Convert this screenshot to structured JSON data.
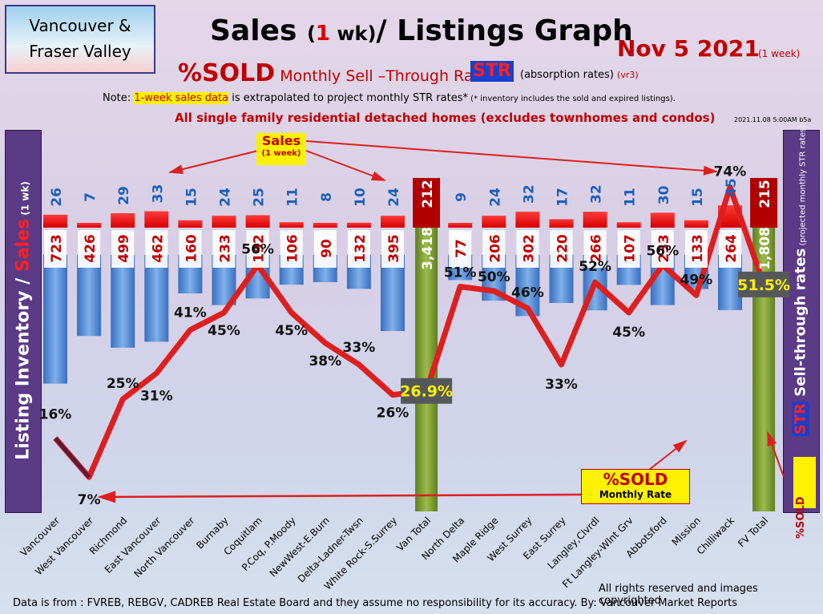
{
  "header": {
    "region_line1": "Vancouver &",
    "region_line2": "Fraser Valley",
    "title_a": "Sales ",
    "title_one": "1",
    "title_wk": " wk)",
    "title_open": "(",
    "title_b": "/ Listings Graph",
    "date": "Nov 5  2021",
    "date_sub": "(1 week)",
    "subtitle_big": "%SOLD",
    "subtitle_rest": " Monthly Sell –Through Rates",
    "str": "STR",
    "absorb": "(absorption rates)",
    "version": "(vr3)",
    "note_a": "Note: ",
    "note_hl": "1-week sales data",
    "note_b": " is extrapolated to project monthly STR rates*",
    "note_small": " (* inventory includes the sold and expired listings).",
    "detached": "All single family residential detached homes (excludes townhomes and condos)",
    "stamp": "2021.11.08 5:00AM b5a"
  },
  "side_labels": {
    "left_a": "Listing Inventory / ",
    "left_sales": "Sales",
    "left_wk": " (1 wk)",
    "right_a": "Sell-through rates",
    "right_small": " (projected monthly STR rates)",
    "right_str": "STR",
    "right_sold": "%SOLD"
  },
  "callouts": {
    "sales_l1": "Sales",
    "sales_l2": "(1 week)",
    "sold_l1": "%SOLD",
    "sold_l2": "Monthly Rate"
  },
  "footer": {
    "rights": "All rights reserved and  images copyrighted",
    "source": "Data is from : FVREB, REBGV, CADREB Real Estate Board and they assume no responsibility for its accuracy. By: Vancouver Market Reports"
  },
  "colors": {
    "sales": "#ff1a1a",
    "inventory": "#4a86d4",
    "total": "#7a9a2e",
    "total_sales": "#b00000",
    "line": "#dd1f1f",
    "value_text": "#c00000",
    "sales_text": "#1e5fb8"
  },
  "chart_data": {
    "type": "bar",
    "categories": [
      "Vancouver",
      "West Vancouver",
      "Richmond",
      "East Vancouver",
      "North Vancouver",
      "Burnaby",
      "Coquitlam",
      "P.Coq, P.Moody",
      "NewWest-E.Burn",
      "Delta-Ladner-Twsn",
      "White Rock-S.Surrey",
      "Van Total",
      "North Delta",
      "Maple Ridge",
      "West Surrey",
      "East Surrey",
      "Langley,Clvrdl",
      "Ft Langley-Wlnt Grv",
      "Abbotsford",
      "Mission",
      "Chilliwack",
      "FV Total"
    ],
    "series": [
      {
        "name": "Sales",
        "values": [
          26,
          7,
          29,
          33,
          15,
          24,
          25,
          11,
          8,
          10,
          24,
          212,
          9,
          24,
          32,
          17,
          32,
          11,
          30,
          15,
          45,
          215
        ]
      },
      {
        "name": "Listing Inventory",
        "values": [
          723,
          426,
          499,
          462,
          160,
          233,
          192,
          106,
          90,
          132,
          395,
          3418,
          77,
          206,
          302,
          220,
          266,
          107,
          233,
          133,
          264,
          1808
        ]
      },
      {
        "name": "%SOLD",
        "values": [
          16,
          7,
          25,
          31,
          41,
          45,
          56,
          45,
          38,
          33,
          26,
          26.9,
          51,
          50,
          46,
          33,
          52,
          45,
          56,
          49,
          74,
          51.5
        ]
      }
    ],
    "sold_labels": [
      "16%",
      "7%",
      "25%",
      "31%",
      "41%",
      "45%",
      "56%",
      "45%",
      "38%",
      "33%",
      "26%",
      "26.9%",
      "51%",
      "50%",
      "46%",
      "33%",
      "52%",
      "45%",
      "56%",
      "49%",
      "74%",
      "51.5%"
    ],
    "inventory_labels": [
      "723",
      "426",
      "499",
      "462",
      "160",
      "233",
      "192",
      "106",
      "90",
      "132",
      "395",
      "3,418",
      "77",
      "206",
      "302",
      "220",
      "266",
      "107",
      "233",
      "133",
      "264",
      "1,808"
    ],
    "totals_index": [
      11,
      21
    ]
  }
}
